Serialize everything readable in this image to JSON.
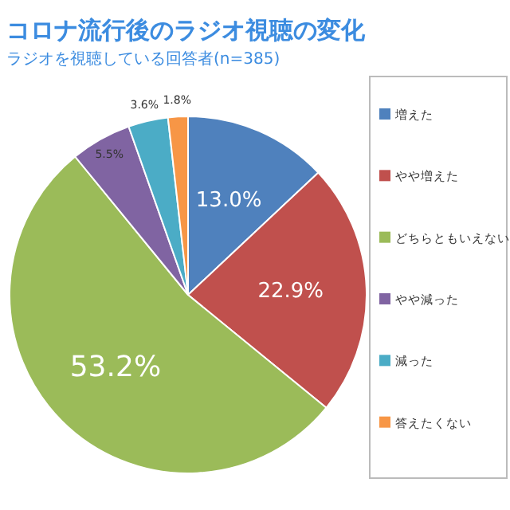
{
  "chart_data": {
    "type": "pie",
    "title": "コロナ流行後のラジオ視聴の変化",
    "subtitle": "ラジオを視聴している回答者(n=385)",
    "categories": [
      "増えた",
      "やや増えた",
      "どちらともいえない",
      "やや減った",
      "減った",
      "答えたくない"
    ],
    "values": [
      13.0,
      22.9,
      53.2,
      5.5,
      3.6,
      1.8
    ],
    "colors": [
      "#4f81bd",
      "#c0504d",
      "#9bbb59",
      "#8064a2",
      "#4bacc6",
      "#f79646"
    ],
    "value_labels": [
      "13.0%",
      "22.9%",
      "53.2%",
      "5.5%",
      "3.6%",
      "1.8%"
    ],
    "legend": "right"
  }
}
